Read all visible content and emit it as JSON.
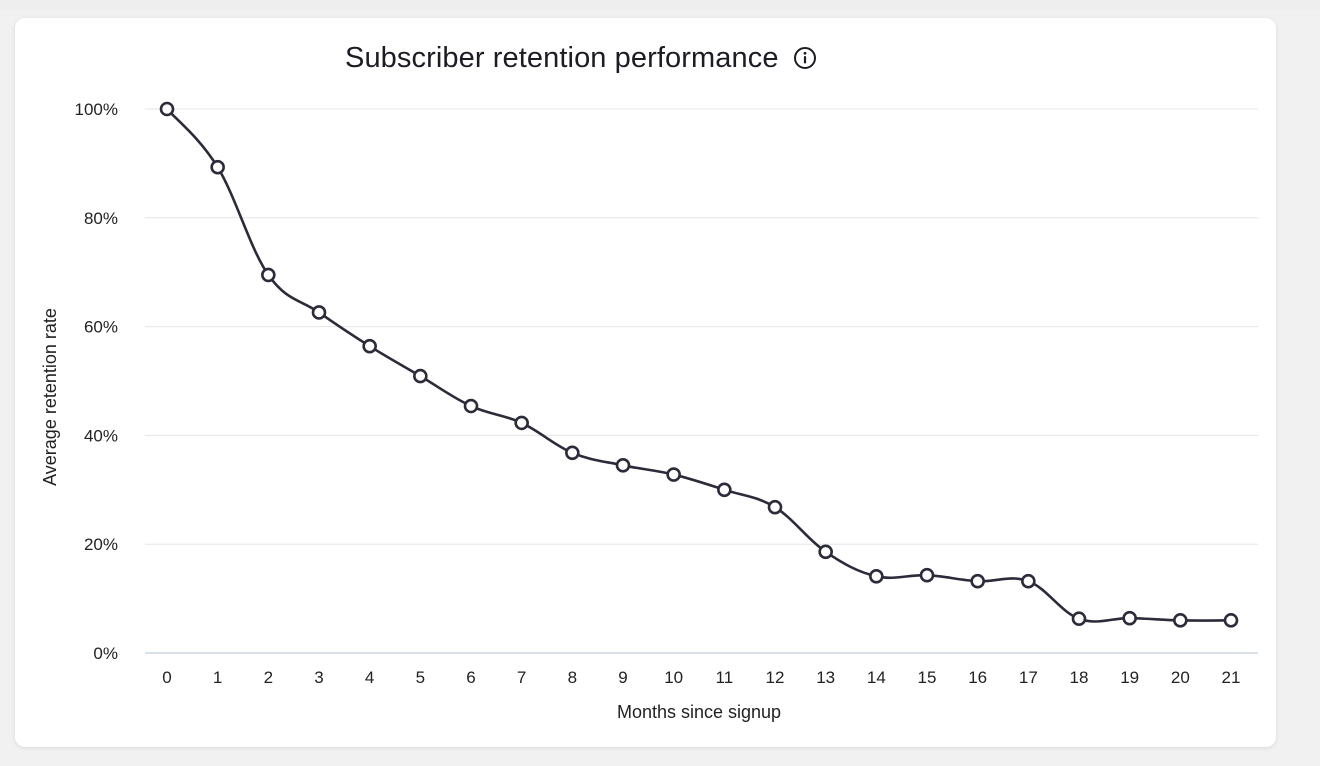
{
  "chart_data": {
    "type": "line",
    "title": "Subscriber retention performance",
    "xlabel": "Months since signup",
    "ylabel": "Average retention rate",
    "x": [
      0,
      1,
      2,
      3,
      4,
      5,
      6,
      7,
      8,
      9,
      10,
      11,
      12,
      13,
      14,
      15,
      16,
      17,
      18,
      19,
      20,
      21
    ],
    "series": [
      {
        "values": [
          100,
          89.3,
          69.5,
          62.6,
          56.4,
          50.9,
          45.4,
          42.3,
          36.8,
          34.5,
          32.8,
          30.0,
          26.8,
          18.6,
          14.1,
          14.3,
          13.2,
          13.2,
          6.3,
          6.4,
          6.0,
          6.0
        ]
      }
    ],
    "xlim": [
      0,
      21
    ],
    "ylim": [
      0,
      100
    ],
    "yticks": [
      0,
      20,
      40,
      60,
      80,
      100
    ],
    "ytick_labels": [
      "0%",
      "20%",
      "40%",
      "60%",
      "80%",
      "100%"
    ],
    "grid": true,
    "line_color": "#2b2b3a",
    "marker_fill": "#ffffff",
    "grid_color": "#e3e6ea",
    "info_icon": "info-circle-icon"
  }
}
